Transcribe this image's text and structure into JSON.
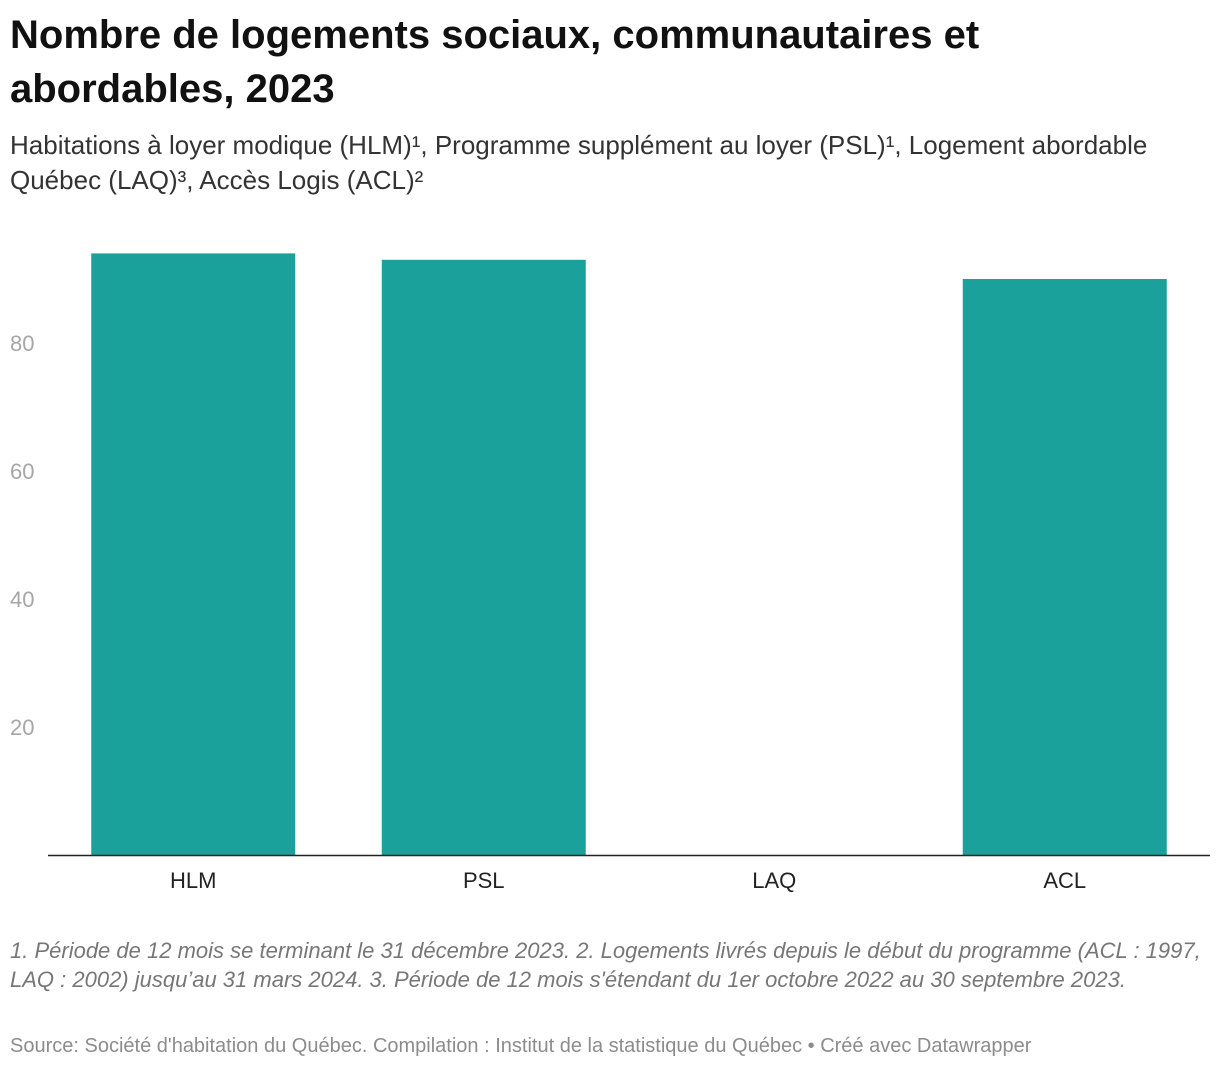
{
  "header": {
    "title": "Nombre de logements sociaux, communautaires et abordables, 2023",
    "subtitle": "Habitations à loyer modique (HLM)¹, Programme supplément au loyer (PSL)¹, Logement abordable Québec (LAQ)³, Accès Logis (ACL)²"
  },
  "footer": {
    "notes": "1. Période de 12 mois se terminant le 31 décembre 2023. 2. Logements livrés depuis le début du programme (ACL : 1997, LAQ : 2002) jusqu’au 31 mars 2024. 3. Période de 12 mois s'étendant du 1er octobre 2022 au 30 septembre 2023.",
    "source": "Source: Société d'habitation du Québec. Compilation : Institut de la statistique du Québec • Créé avec Datawrapper"
  },
  "colors": {
    "bar": "#1aa19c",
    "axis": "#222222",
    "tick_text": "#a6a6a6"
  },
  "chart_data": {
    "type": "bar",
    "categories": [
      "HLM",
      "PSL",
      "LAQ",
      "ACL"
    ],
    "values": [
      94,
      93,
      0,
      90
    ],
    "title": "Nombre de logements sociaux, communautaires et abordables, 2023",
    "xlabel": "",
    "ylabel": "",
    "ylim": [
      0,
      95
    ],
    "yticks": [
      20,
      40,
      60,
      80
    ],
    "grid": false,
    "legend": "none"
  }
}
